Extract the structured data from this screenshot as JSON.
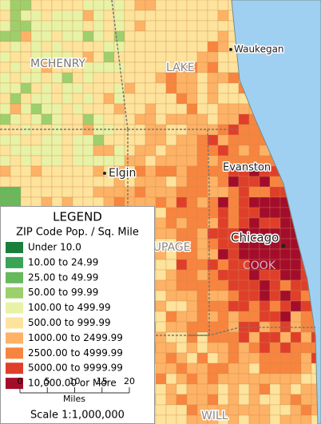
{
  "map": {
    "regions": [
      "MCHENRY",
      "LAKE",
      "DUPAGE",
      "COOK",
      "WILL"
    ],
    "cities": [
      "Waukegan",
      "Elgin",
      "Evanston",
      "Chicago"
    ]
  },
  "legend": {
    "title": "LEGEND",
    "subtitle": "ZIP Code Pop. / Sq. Mile",
    "items": [
      {
        "label": "Under 10.0",
        "color": "#1a7f3c"
      },
      {
        "label": "10.00 to 24.99",
        "color": "#3aa356"
      },
      {
        "label": "25.00 to 49.99",
        "color": "#66b95c"
      },
      {
        "label": "50.00 to 99.99",
        "color": "#9dd06c"
      },
      {
        "label": "100.00 to 499.99",
        "color": "#e8f2a6"
      },
      {
        "label": "500.00 to 999.99",
        "color": "#fde39c"
      },
      {
        "label": "1000.00 to 2499.99",
        "color": "#fdb266"
      },
      {
        "label": "2500.00 to 4999.99",
        "color": "#f7853f"
      },
      {
        "label": "5000.00 to 9999.99",
        "color": "#df3f2a"
      },
      {
        "label": "10,000.00 or More",
        "color": "#a30d2b"
      }
    ]
  },
  "scale_bar": {
    "ticks": [
      0,
      5,
      10,
      15,
      20
    ],
    "xlim": [
      0,
      20
    ],
    "unit": "Miles",
    "scale": "Scale 1:1,000,000"
  }
}
